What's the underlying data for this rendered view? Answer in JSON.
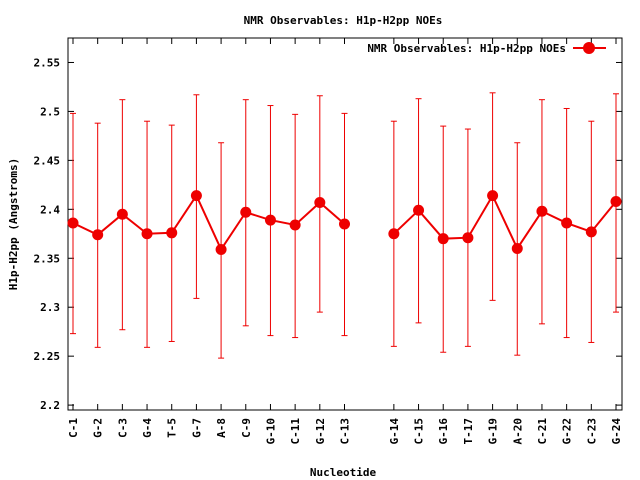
{
  "chart_data": {
    "type": "line",
    "title": "NMR Observables: H1p-H2pp NOEs",
    "xlabel": "Nucleotide",
    "ylabel": "H1p-H2pp (Angstroms)",
    "ylim": [
      2.195,
      2.575
    ],
    "yticks": [
      "2.2",
      "2.25",
      "2.3",
      "2.35",
      "2.4",
      "2.45",
      "2.5",
      "2.55"
    ],
    "grid": false,
    "legend_position": "top-right",
    "color": "#ee0000",
    "series": [
      {
        "name": "NMR Observables: H1p-H2pp NOEs",
        "points": [
          {
            "x": 1,
            "label": "C-1",
            "y": 2.386,
            "low": 2.273,
            "high": 2.498
          },
          {
            "x": 2,
            "label": "G-2",
            "y": 2.374,
            "low": 2.259,
            "high": 2.488
          },
          {
            "x": 3,
            "label": "C-3",
            "y": 2.395,
            "low": 2.277,
            "high": 2.512
          },
          {
            "x": 4,
            "label": "G-4",
            "y": 2.375,
            "low": 2.259,
            "high": 2.49
          },
          {
            "x": 5,
            "label": "T-5",
            "y": 2.376,
            "low": 2.265,
            "high": 2.486
          },
          {
            "x": 6,
            "label": "G-7",
            "y": 2.414,
            "low": 2.309,
            "high": 2.517
          },
          {
            "x": 7,
            "label": "A-8",
            "y": 2.359,
            "low": 2.248,
            "high": 2.468
          },
          {
            "x": 8,
            "label": "C-9",
            "y": 2.397,
            "low": 2.281,
            "high": 2.512
          },
          {
            "x": 9,
            "label": "G-10",
            "y": 2.389,
            "low": 2.271,
            "high": 2.506
          },
          {
            "x": 10,
            "label": "C-11",
            "y": 2.384,
            "low": 2.269,
            "high": 2.497
          },
          {
            "x": 11,
            "label": "G-12",
            "y": 2.407,
            "low": 2.295,
            "high": 2.516
          },
          {
            "x": 12,
            "label": "C-13",
            "y": 2.385,
            "low": 2.271,
            "high": 2.498
          },
          {
            "x": 14,
            "label": "G-14",
            "y": 2.375,
            "low": 2.26,
            "high": 2.49
          },
          {
            "x": 15,
            "label": "C-15",
            "y": 2.399,
            "low": 2.284,
            "high": 2.513
          },
          {
            "x": 16,
            "label": "G-16",
            "y": 2.37,
            "low": 2.254,
            "high": 2.485
          },
          {
            "x": 17,
            "label": "T-17",
            "y": 2.371,
            "low": 2.26,
            "high": 2.482
          },
          {
            "x": 18,
            "label": "G-19",
            "y": 2.414,
            "low": 2.307,
            "high": 2.519
          },
          {
            "x": 19,
            "label": "A-20",
            "y": 2.36,
            "low": 2.251,
            "high": 2.468
          },
          {
            "x": 20,
            "label": "C-21",
            "y": 2.398,
            "low": 2.283,
            "high": 2.512
          },
          {
            "x": 21,
            "label": "G-22",
            "y": 2.386,
            "low": 2.269,
            "high": 2.503
          },
          {
            "x": 22,
            "label": "C-23",
            "y": 2.377,
            "low": 2.264,
            "high": 2.49
          },
          {
            "x": 23,
            "label": "G-24",
            "y": 2.408,
            "low": 2.295,
            "high": 2.518
          }
        ]
      }
    ]
  }
}
